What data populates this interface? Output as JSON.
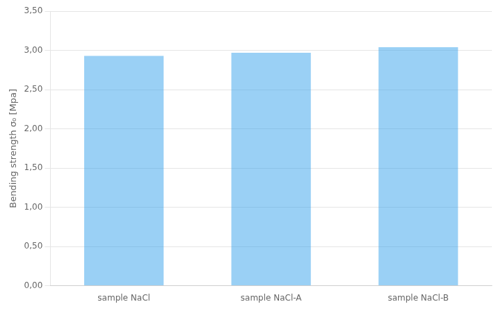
{
  "chart_data": {
    "type": "bar",
    "categories": [
      "sample NaCl",
      "sample NaCl-A",
      "sample NaCl-B"
    ],
    "values": [
      2.93,
      2.97,
      3.04
    ],
    "ylabel": "Bending strength σ₀ [Mpa]",
    "ylim": [
      0,
      3.5
    ],
    "yticks": [
      {
        "value": 0.0,
        "label": "0,00"
      },
      {
        "value": 0.5,
        "label": "0,50"
      },
      {
        "value": 1.0,
        "label": "1,00"
      },
      {
        "value": 1.5,
        "label": "1,50"
      },
      {
        "value": 2.0,
        "label": "2,00"
      },
      {
        "value": 2.5,
        "label": "2,50"
      },
      {
        "value": 3.0,
        "label": "3,00"
      },
      {
        "value": 3.5,
        "label": "3,50"
      }
    ],
    "grid": true
  }
}
